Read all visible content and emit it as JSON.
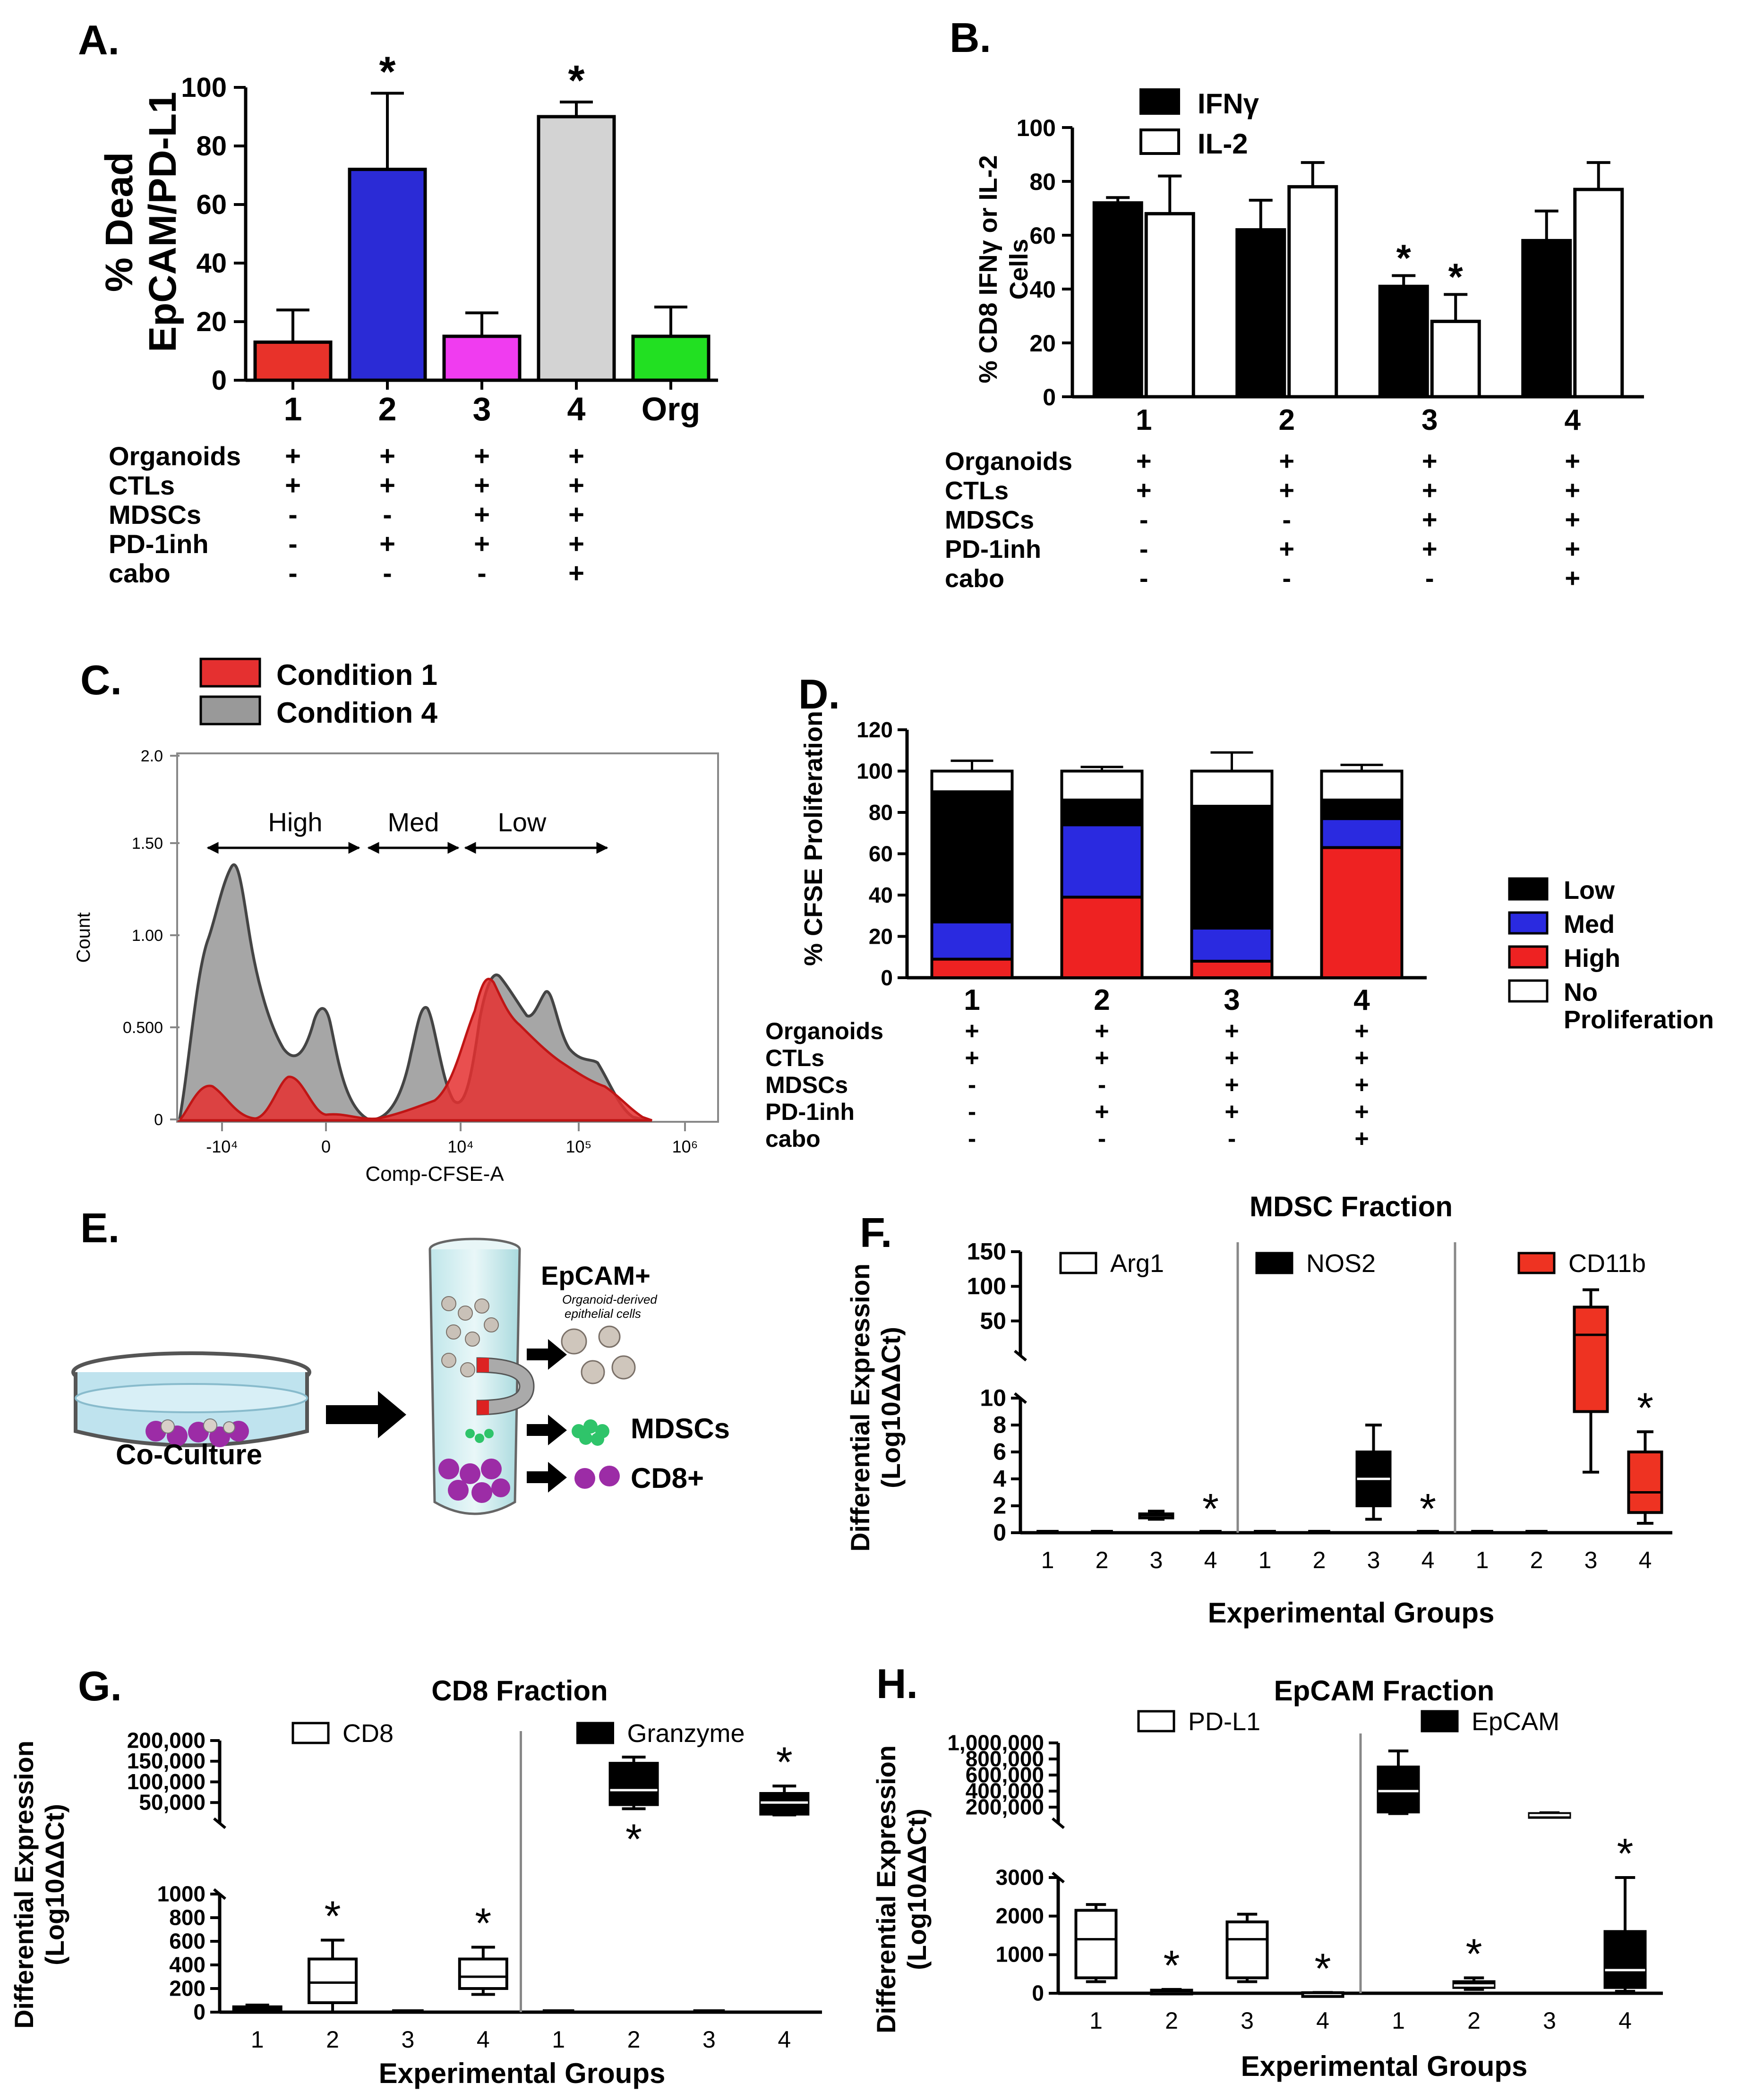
{
  "conditions": {
    "rows": [
      "Organoids",
      "CTLs",
      "MDSCs",
      "PD-1inh",
      "cabo"
    ],
    "signs4": [
      [
        "+",
        "+",
        "+",
        "+"
      ],
      [
        "+",
        "+",
        "+",
        "+"
      ],
      [
        "-",
        "-",
        "+",
        "+"
      ],
      [
        "-",
        "+",
        "+",
        "+"
      ],
      [
        "-",
        "-",
        "-",
        "+"
      ]
    ],
    "signsA": [
      [
        "+",
        "+",
        "+",
        "+",
        ""
      ],
      [
        "+",
        "+",
        "+",
        "+",
        ""
      ],
      [
        "-",
        "-",
        "+",
        "+",
        ""
      ],
      [
        "-",
        "+",
        "+",
        "+",
        ""
      ],
      [
        "-",
        "-",
        "-",
        "+",
        ""
      ]
    ]
  },
  "asterisk": "*",
  "break_mark": "//",
  "chart_data": [
    {
      "panel": "A.",
      "type": "bar",
      "categories": [
        "1",
        "2",
        "3",
        "4",
        "Org"
      ],
      "values": [
        13,
        72,
        15,
        90,
        15
      ],
      "errors": [
        11,
        26,
        8,
        5,
        10
      ],
      "colors": [
        "#e8322a",
        "#2b2bd6",
        "#f03cf0",
        "#d3d3d3",
        "#22e022"
      ],
      "significant": [
        false,
        true,
        false,
        true,
        false
      ],
      "ylabel": "% Dead EpCAM/PD-L1",
      "ylabel_lines": [
        "% Dead",
        "EpCAM/PD-L1"
      ],
      "ylim": [
        0,
        100
      ],
      "yticks": [
        "0",
        "20",
        "40",
        "60",
        "80",
        "100"
      ]
    },
    {
      "panel": "B.",
      "type": "bar",
      "categories": [
        "1",
        "2",
        "3",
        "4"
      ],
      "series": [
        {
          "name": "IFNγ",
          "values": [
            72,
            62,
            41,
            58
          ],
          "errors": [
            2,
            11,
            4,
            11
          ],
          "color": "#000000",
          "significant": [
            false,
            false,
            true,
            false
          ]
        },
        {
          "name": "IL-2",
          "values": [
            68,
            78,
            28,
            77
          ],
          "errors": [
            14,
            9,
            10,
            10
          ],
          "color": "#ffffff",
          "significant": [
            false,
            false,
            true,
            false
          ]
        }
      ],
      "ylabel": "% CD8 IFNγ or IL-2 Cells",
      "ylabel_lines": [
        "% CD8 IFNγ or IL-2",
        "Cells"
      ],
      "ylim": [
        0,
        100
      ],
      "yticks": [
        "0",
        "20",
        "40",
        "60",
        "80",
        "100"
      ]
    },
    {
      "panel": "C.",
      "type": "area",
      "xlabel": "Comp-CFSE-A",
      "ylabel": "Count",
      "xticks": [
        "-10⁴",
        "0",
        "10⁴",
        "10⁵",
        "10⁶"
      ],
      "yticks": [
        "0",
        "0.500",
        "1.00",
        "1.50",
        "2.0"
      ],
      "regions": [
        "High",
        "Med",
        "Low"
      ],
      "series": [
        {
          "name": "Condition 1",
          "color": "#e53030"
        },
        {
          "name": "Condition 4",
          "color": "#999999"
        }
      ]
    },
    {
      "panel": "D.",
      "type": "bar",
      "stacked": true,
      "categories": [
        "1",
        "2",
        "3",
        "4"
      ],
      "series": [
        {
          "name": "High",
          "values": [
            9,
            39,
            8,
            63
          ],
          "color": "#ee2222"
        },
        {
          "name": "Med",
          "values": [
            18,
            35,
            16,
            14
          ],
          "color": "#2a2ae0"
        },
        {
          "name": "Low",
          "values": [
            63,
            12,
            59,
            9
          ],
          "color": "#000000"
        },
        {
          "name": "No Proliferation",
          "values": [
            10,
            14,
            17,
            14
          ],
          "color": "#ffffff"
        }
      ],
      "legend_labels": [
        "Low",
        "Med",
        "High",
        "No",
        "Proliferation"
      ],
      "ylabel": "% CFSE Proliferation",
      "ylim": [
        0,
        120
      ],
      "yticks": [
        "0",
        "20",
        "40",
        "60",
        "80",
        "100",
        "120"
      ]
    },
    {
      "panel": "F.",
      "type": "box",
      "title": "MDSC Fraction",
      "xlabel": "Experimental Groups",
      "ylabel": "Differential Expression (Log10ΔΔCt)",
      "ylabel_lines": [
        "Differential Expression",
        "(Log10ΔΔCt)"
      ],
      "yticks_low": [
        "0",
        "2",
        "4",
        "6",
        "8",
        "10"
      ],
      "yticks_high": [
        "50",
        "100",
        "150"
      ],
      "groups": [
        "1",
        "2",
        "3",
        "4"
      ],
      "markers": [
        {
          "name": "Arg1",
          "color": "#ffffff",
          "boxes": [
            [
              0,
              0,
              0,
              0,
              0
            ],
            [
              0,
              0,
              0,
              0,
              0
            ],
            [
              1,
              1.1,
              1.3,
              1.4,
              1.6
            ],
            [
              0,
              0,
              0,
              0,
              0
            ]
          ],
          "significant": [
            false,
            false,
            false,
            true
          ]
        },
        {
          "name": "NOS2",
          "color": "#000000",
          "boxes": [
            [
              0,
              0,
              0,
              0,
              0
            ],
            [
              0,
              0,
              0,
              0,
              0
            ],
            [
              1,
              2,
              4,
              6,
              8
            ],
            [
              0,
              0,
              0,
              0,
              0
            ]
          ],
          "significant": [
            false,
            false,
            false,
            true
          ]
        },
        {
          "name": "CD11b",
          "color": "#ee3322",
          "boxes": [
            [
              0,
              0,
              0,
              0,
              0
            ],
            [
              0,
              0,
              0,
              0,
              0
            ],
            [
              4.5,
              9,
              30,
              70,
              95
            ],
            [
              0.7,
              1.5,
              3,
              6,
              7.5
            ]
          ],
          "significant": [
            false,
            false,
            false,
            true
          ]
        }
      ]
    },
    {
      "panel": "G.",
      "type": "box",
      "title": "CD8 Fraction",
      "xlabel": "Experimental Groups",
      "ylabel": "Differential Expression (Log10ΔΔCt)",
      "ylabel_lines": [
        "Differential Expression",
        "(Log10ΔΔCt)"
      ],
      "yticks_low": [
        "0",
        "200",
        "400",
        "600",
        "800",
        "1000"
      ],
      "yticks_high": [
        "50,000",
        "100,000",
        "150,000",
        "200,000"
      ],
      "groups": [
        "1",
        "2",
        "3",
        "4"
      ],
      "markers": [
        {
          "name": "CD8",
          "color": "#ffffff",
          "boxes": [
            [
              5,
              15,
              30,
              45,
              60
            ],
            [
              0,
              80,
              250,
              450,
              610
            ],
            [
              0,
              0,
              0,
              0,
              0
            ],
            [
              150,
              200,
              300,
              450,
              550
            ]
          ],
          "significant": [
            false,
            true,
            false,
            true
          ]
        },
        {
          "name": "Granzyme",
          "color": "#000000",
          "boxes": [
            [
              0,
              0,
              0,
              0,
              0
            ],
            [
              35000,
              45000,
              80000,
              145000,
              160000
            ],
            [
              0,
              0,
              0,
              0,
              0
            ],
            [
              20000,
              22000,
              50000,
              72000,
              90000
            ]
          ],
          "significant": [
            false,
            true,
            false,
            true
          ]
        }
      ]
    },
    {
      "panel": "H.",
      "type": "box",
      "title": "EpCAM Fraction",
      "xlabel": "Experimental Groups",
      "ylabel": "Differential Expression (Log10ΔΔCt)",
      "ylabel_lines": [
        "Differential Expression",
        "(Log10ΔΔCt)"
      ],
      "yticks_low": [
        "0",
        "1000",
        "2000",
        "3000"
      ],
      "yticks_high": [
        "200,000",
        "400,000",
        "600,000",
        "800,000",
        "1,000,000"
      ],
      "groups": [
        "1",
        "2",
        "3",
        "4"
      ],
      "markers": [
        {
          "name": "PD-L1",
          "color": "#ffffff",
          "boxes": [
            [
              300,
              400,
              1400,
              2150,
              2300
            ],
            [
              0,
              20,
              50,
              80,
              100
            ],
            [
              300,
              400,
              1400,
              1850,
              2050
            ],
            [
              0,
              5,
              10,
              15,
              20
            ]
          ],
          "significant": [
            false,
            true,
            false,
            true
          ]
        },
        {
          "name": "EpCAM",
          "color": "#000000",
          "boxes": [
            [
              120000,
              140000,
              400000,
              700000,
              900000
            ],
            [
              100,
              150,
              200,
              300,
              400
            ],
            [
              90000,
              95000,
              100000,
              120000,
              130000
            ],
            [
              50,
              150,
              600,
              1600,
              3000
            ]
          ],
          "significant": [
            false,
            true,
            false,
            true
          ]
        }
      ]
    }
  ],
  "panelE": {
    "label": "E.",
    "coculture": "Co-Culture",
    "epcam": "EpCAM+",
    "organoid_note1": "Organoid-derived",
    "organoid_note2": "epithelial cells",
    "mdscs": "MDSCs",
    "cd8": "CD8+"
  }
}
